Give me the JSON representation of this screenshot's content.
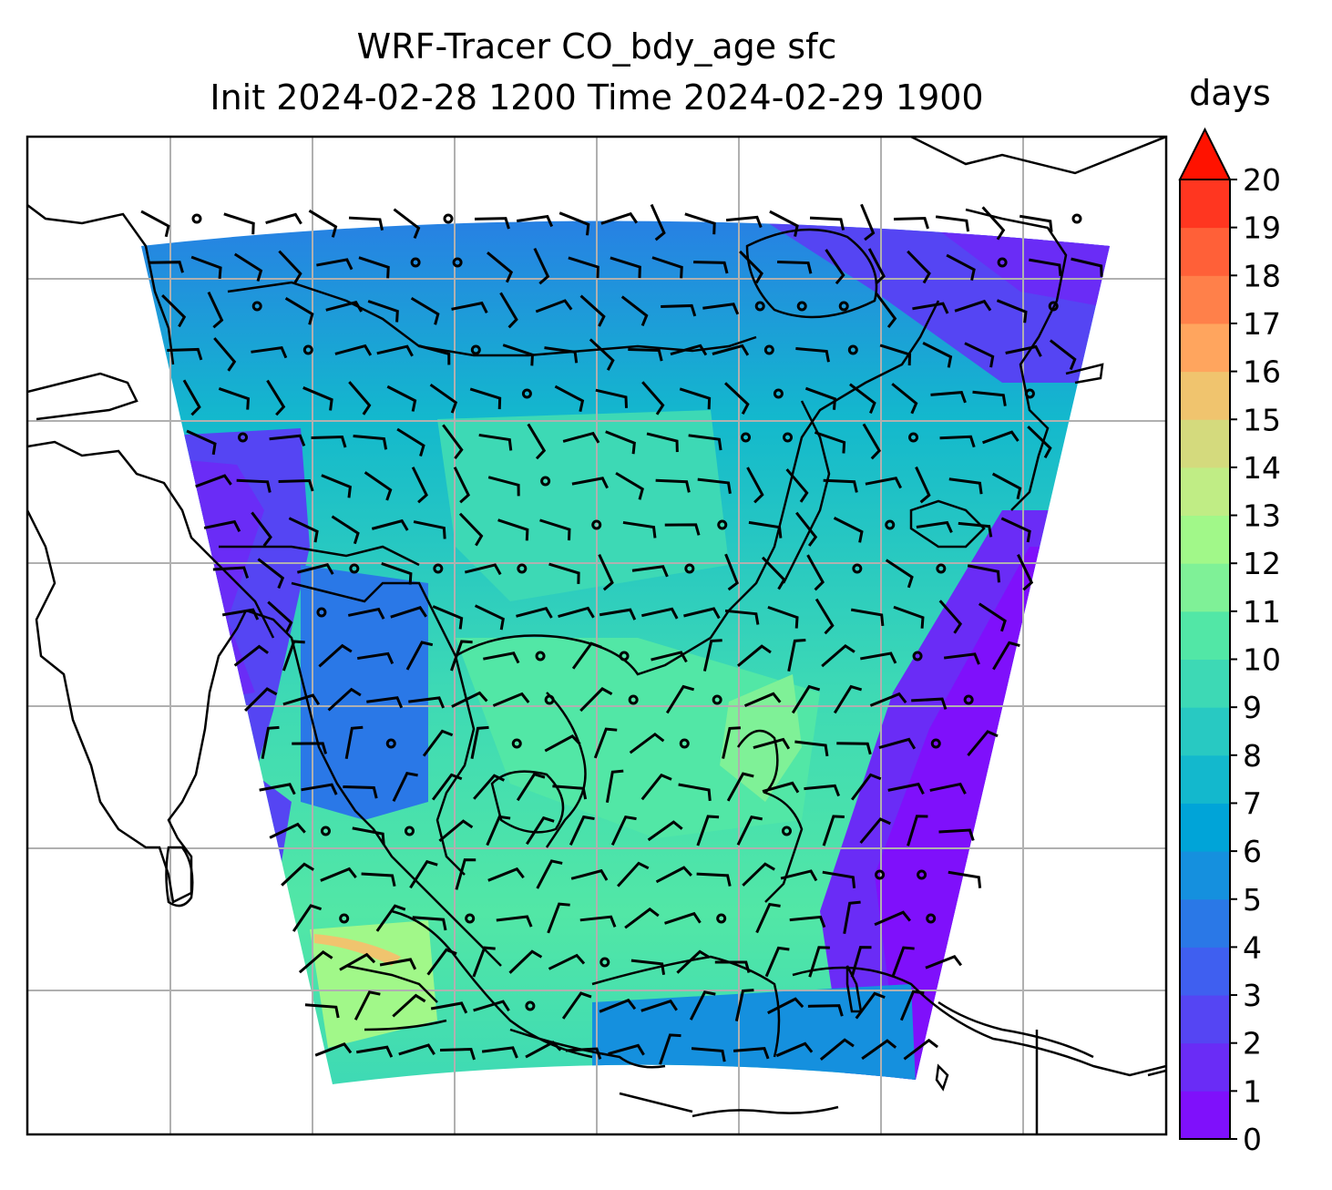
{
  "title_line1": "WRF-Tracer CO_bdy_age sfc",
  "title_line2": "Init 2024-02-28 1200 Time 2024-02-29 1900",
  "colorbar": {
    "unit": "days",
    "ticks": [
      "0",
      "1",
      "2",
      "3",
      "4",
      "5",
      "6",
      "7",
      "8",
      "9",
      "10",
      "11",
      "12",
      "13",
      "14",
      "15",
      "16",
      "17",
      "18",
      "19",
      "20"
    ],
    "extend": "max",
    "colormap": "rainbow",
    "colors": [
      "#7f10fb",
      "#6a2cf6",
      "#5545f3",
      "#3f5ff0",
      "#2a78e7",
      "#1590de",
      "#00a4d8",
      "#13b8cd",
      "#28c9c2",
      "#3dd9b5",
      "#52e7a6",
      "#7ff197",
      "#a1f889",
      "#c0ed85",
      "#d4da7d",
      "#f0c46e",
      "#ffa55e",
      "#ff804a",
      "#ff6038",
      "#ff3620",
      "#ff1200"
    ]
  },
  "map": {
    "field": "CO_bdy_age",
    "overlay": "surface wind barbs",
    "gridlines": true
  }
}
